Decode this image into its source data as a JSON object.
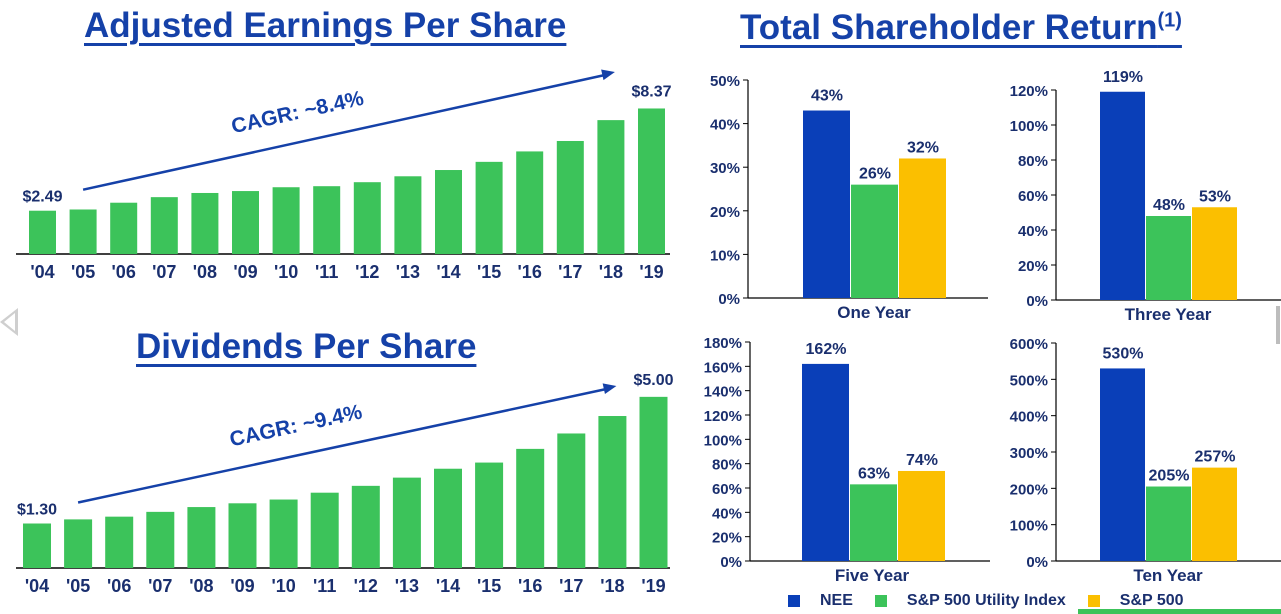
{
  "titles": {
    "eps": "Adjusted Earnings Per Share",
    "dps": "Dividends Per Share",
    "tsr": "Total Shareholder Return",
    "tsr_footnote": "(1)"
  },
  "colors": {
    "title": "#1541a8",
    "bar_green": "#3cc35a",
    "nee_blue": "#0a3fb8",
    "utility_green": "#3cc35a",
    "sp500_gold": "#fbbf00",
    "text": "#1a2f6e"
  },
  "legend": [
    {
      "label": "NEE",
      "color": "#0a3fb8"
    },
    {
      "label": "S&P 500 Utility Index",
      "color": "#3cc35a"
    },
    {
      "label": "S&P 500",
      "color": "#fbbf00"
    }
  ],
  "chart_data": [
    {
      "id": "eps",
      "type": "bar",
      "title": "Adjusted Earnings Per Share",
      "categories": [
        "'04",
        "'05",
        "'06",
        "'07",
        "'08",
        "'09",
        "'10",
        "'11",
        "'12",
        "'13",
        "'14",
        "'15",
        "'16",
        "'17",
        "'18",
        "'19"
      ],
      "values": [
        2.49,
        2.56,
        2.95,
        3.27,
        3.51,
        3.62,
        3.84,
        3.9,
        4.13,
        4.47,
        4.83,
        5.3,
        5.9,
        6.5,
        7.7,
        8.37
      ],
      "labels": {
        "first": "$2.49",
        "last": "$8.37"
      },
      "annotation": "CAGR: ~8.4%",
      "ylim": [
        0,
        8.8
      ],
      "color": "#3cc35a"
    },
    {
      "id": "dps",
      "type": "bar",
      "title": "Dividends Per Share",
      "categories": [
        "'04",
        "'05",
        "'06",
        "'07",
        "'08",
        "'09",
        "'10",
        "'11",
        "'12",
        "'13",
        "'14",
        "'15",
        "'16",
        "'17",
        "'18",
        "'19"
      ],
      "values": [
        1.3,
        1.42,
        1.5,
        1.64,
        1.78,
        1.89,
        2.0,
        2.2,
        2.4,
        2.64,
        2.9,
        3.08,
        3.48,
        3.93,
        4.44,
        5.0
      ],
      "labels": {
        "first": "$1.30",
        "last": "$5.00"
      },
      "annotation": "CAGR: ~9.4%",
      "ylim": [
        0,
        5.2
      ],
      "color": "#3cc35a"
    },
    {
      "id": "tsr-one-year",
      "type": "bar",
      "xlabel": "One Year",
      "series": [
        {
          "name": "NEE",
          "value": 43,
          "label": "43%"
        },
        {
          "name": "S&P 500 Utility Index",
          "value": 26,
          "label": "26%"
        },
        {
          "name": "S&P 500",
          "value": 32,
          "label": "32%"
        }
      ],
      "yticks": [
        "0%",
        "10%",
        "20%",
        "30%",
        "40%",
        "50%"
      ],
      "ylim": [
        0,
        50
      ]
    },
    {
      "id": "tsr-three-year",
      "type": "bar",
      "xlabel": "Three Year",
      "series": [
        {
          "name": "NEE",
          "value": 119,
          "label": "119%"
        },
        {
          "name": "S&P 500 Utility Index",
          "value": 48,
          "label": "48%"
        },
        {
          "name": "S&P 500",
          "value": 53,
          "label": "53%"
        }
      ],
      "yticks": [
        "0%",
        "20%",
        "40%",
        "60%",
        "80%",
        "100%",
        "120%"
      ],
      "ylim": [
        0,
        120
      ]
    },
    {
      "id": "tsr-five-year",
      "type": "bar",
      "xlabel": "Five Year",
      "series": [
        {
          "name": "NEE",
          "value": 162,
          "label": "162%"
        },
        {
          "name": "S&P 500 Utility Index",
          "value": 63,
          "label": "63%"
        },
        {
          "name": "S&P 500",
          "value": 74,
          "label": "74%"
        }
      ],
      "yticks": [
        "0%",
        "20%",
        "40%",
        "60%",
        "80%",
        "100%",
        "120%",
        "140%",
        "160%",
        "180%"
      ],
      "ylim": [
        0,
        180
      ]
    },
    {
      "id": "tsr-ten-year",
      "type": "bar",
      "xlabel": "Ten Year",
      "series": [
        {
          "name": "NEE",
          "value": 530,
          "label": "530%"
        },
        {
          "name": "S&P 500 Utility Index",
          "value": 205,
          "label": "205%"
        },
        {
          "name": "S&P 500",
          "value": 257,
          "label": "257%"
        }
      ],
      "yticks": [
        "0%",
        "100%",
        "200%",
        "300%",
        "400%",
        "500%",
        "600%"
      ],
      "ylim": [
        0,
        600
      ]
    }
  ]
}
